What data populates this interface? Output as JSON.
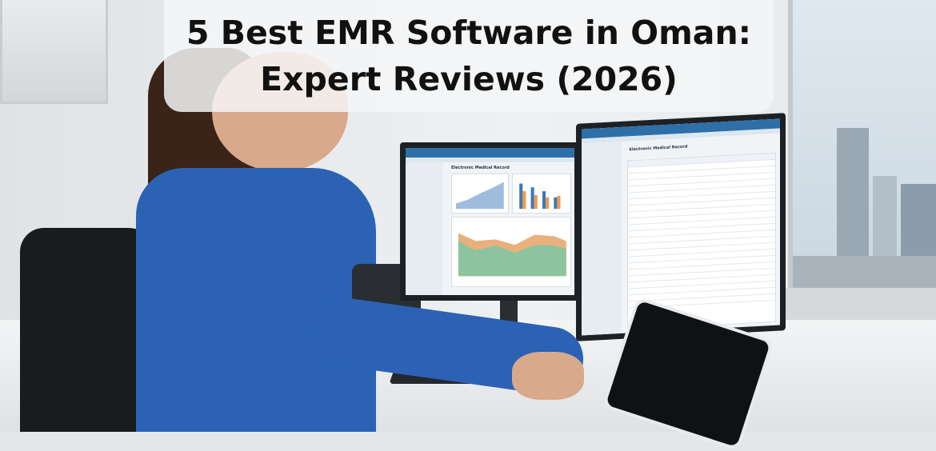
{
  "title": {
    "line1": "5 Best EMR Software in Oman:",
    "line2": "Expert Reviews (2026)"
  },
  "left_screen": {
    "heading": "Electronic Medical Record"
  },
  "right_screen": {
    "heading": "Electronic Medical Record"
  },
  "colors": {
    "screen_header": "#2f6fa8",
    "shirt": "#2b62b4",
    "area_green": "#8cc4a0",
    "area_orange": "#e9b07c",
    "bar_blue": "#3c78b8",
    "bar_orange": "#ef9a4a"
  }
}
